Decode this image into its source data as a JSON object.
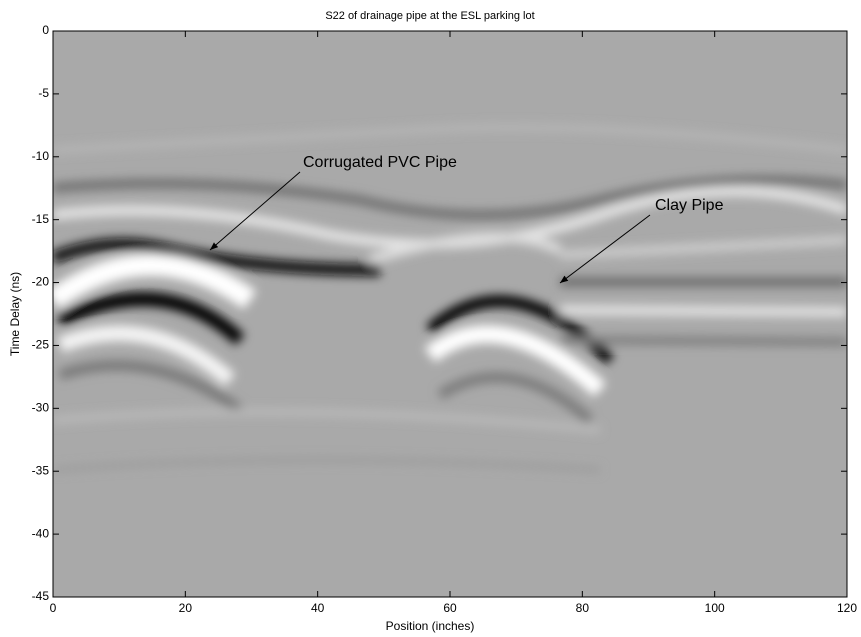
{
  "chart_data": {
    "type": "image",
    "title": "S22 of drainage pipe at the ESL parking lot",
    "x_label": "Position (inches)",
    "y_label": "Time Delay (ns)",
    "xlim": [
      0,
      120
    ],
    "ylim": [
      -45,
      0
    ],
    "xticks": [
      0,
      20,
      40,
      60,
      80,
      100,
      120
    ],
    "yticks": [
      0,
      -5,
      -10,
      -15,
      -20,
      -25,
      -30,
      -35,
      -40,
      -45
    ],
    "annotations": [
      "Corrugated PVC Pipe",
      "Clay Pipe"
    ]
  }
}
